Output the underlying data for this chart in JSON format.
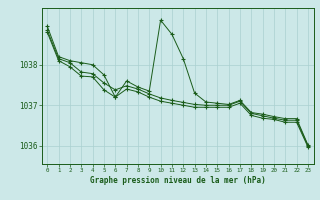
{
  "xlabel": "Graphe pression niveau de la mer (hPa)",
  "x_ticks": [
    0,
    1,
    2,
    3,
    4,
    5,
    6,
    7,
    8,
    9,
    10,
    11,
    12,
    13,
    14,
    15,
    16,
    17,
    18,
    19,
    20,
    21,
    22,
    23
  ],
  "ylim": [
    1035.55,
    1039.4
  ],
  "yticks": [
    1036,
    1037,
    1038
  ],
  "background_color": "#cce8e8",
  "grid_color": "#aad0d0",
  "line_color": "#1a5c1a",
  "series1": [
    1038.95,
    1038.2,
    1038.1,
    1038.05,
    1038.0,
    1037.75,
    1037.2,
    1037.6,
    1037.45,
    1037.35,
    1039.1,
    1038.75,
    1038.15,
    1037.3,
    1037.08,
    1037.05,
    1037.02,
    1037.12,
    1036.82,
    1036.78,
    1036.72,
    1036.67,
    1036.67,
    1036.02
  ],
  "series2": [
    1038.85,
    1038.15,
    1038.05,
    1037.82,
    1037.78,
    1037.55,
    1037.38,
    1037.48,
    1037.4,
    1037.28,
    1037.18,
    1037.12,
    1037.07,
    1037.02,
    1037.0,
    1037.0,
    1037.0,
    1037.1,
    1036.8,
    1036.74,
    1036.68,
    1036.63,
    1036.63,
    1036.0
  ],
  "series3": [
    1038.8,
    1038.1,
    1037.95,
    1037.72,
    1037.7,
    1037.38,
    1037.2,
    1037.4,
    1037.33,
    1037.2,
    1037.1,
    1037.05,
    1037.0,
    1036.95,
    1036.95,
    1036.95,
    1036.95,
    1037.05,
    1036.75,
    1036.68,
    1036.65,
    1036.58,
    1036.58,
    1035.97
  ],
  "figsize": [
    3.2,
    2.0
  ],
  "dpi": 100
}
